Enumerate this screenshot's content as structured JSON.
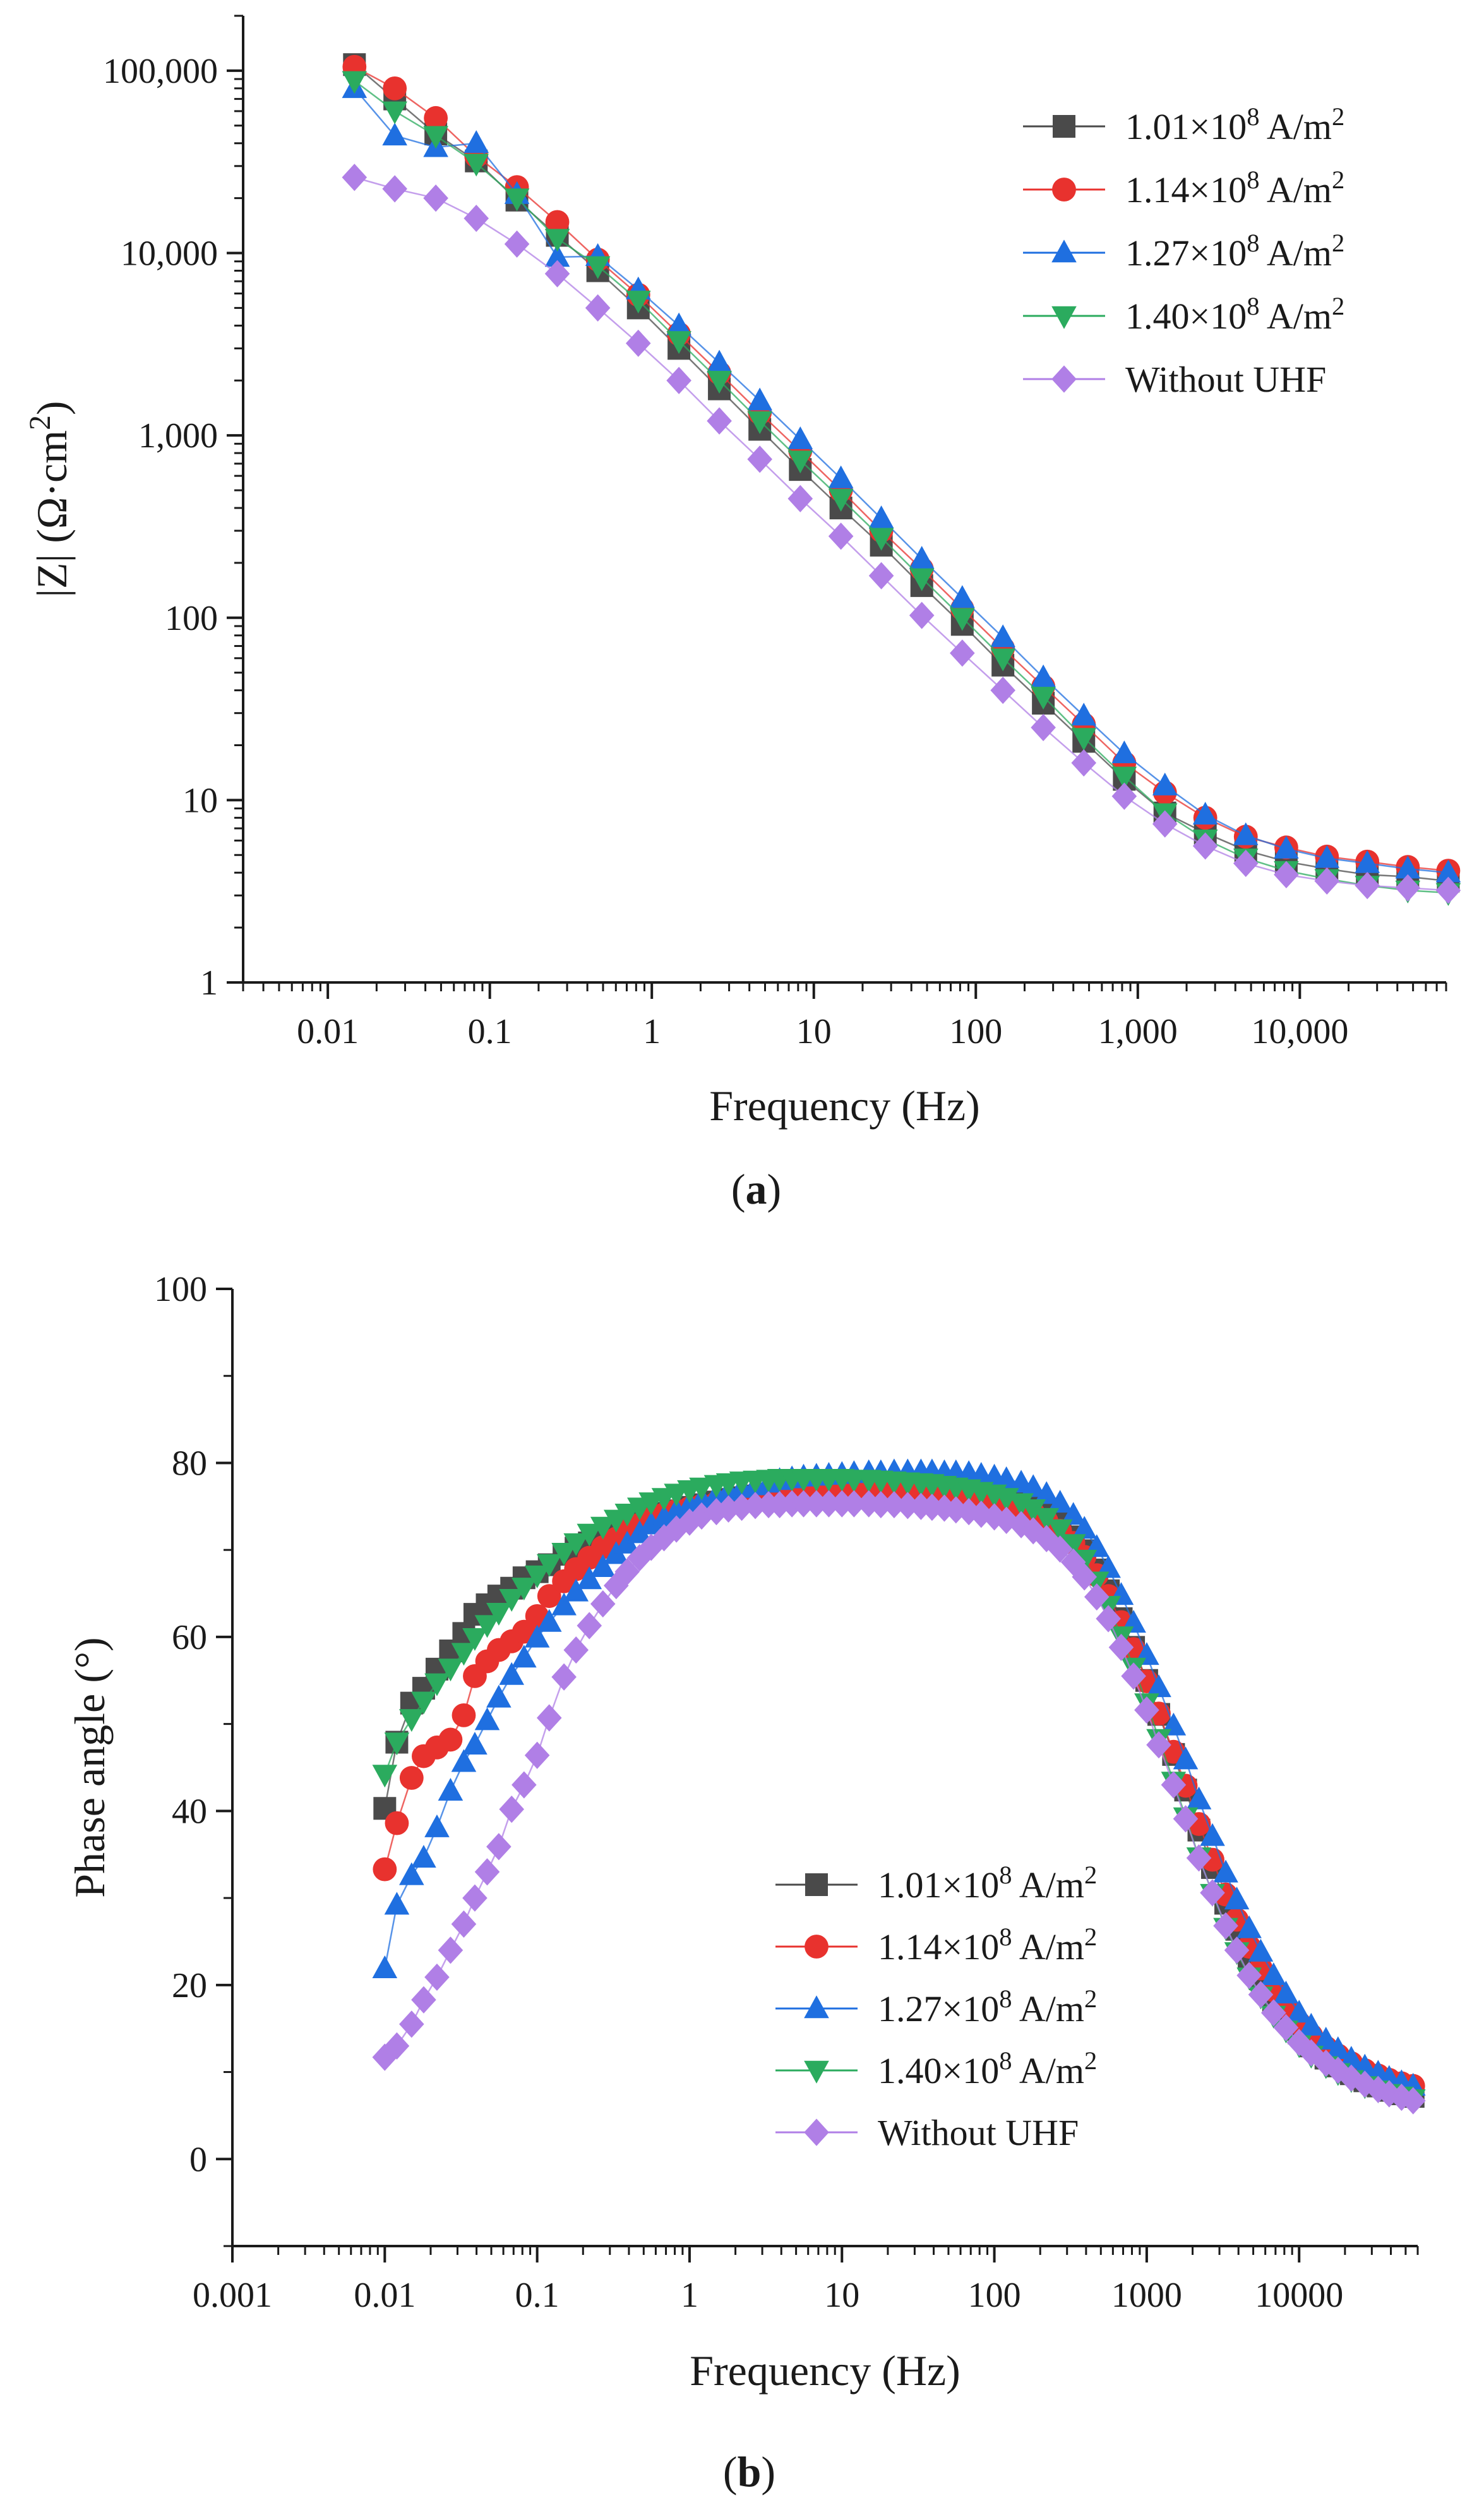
{
  "chart_data": [
    {
      "id": "a",
      "type": "line",
      "panel_label": "a",
      "xlabel": "Frequency (Hz)",
      "ylabel": "|Z| (Ω·cm²)",
      "ylabel_parts": {
        "pre": "|Z| (Ω·cm",
        "sup": "2",
        "post": ")"
      },
      "xscale": "log",
      "yscale": "log",
      "xlim": [
        0.003,
        80000
      ],
      "ylim": [
        1,
        200000
      ],
      "xticks": [
        {
          "value": 0.01,
          "label": "0.01"
        },
        {
          "value": 0.1,
          "label": "0.1"
        },
        {
          "value": 1,
          "label": "1"
        },
        {
          "value": 10,
          "label": "10"
        },
        {
          "value": 100,
          "label": "100"
        },
        {
          "value": 1000,
          "label": "1,000"
        },
        {
          "value": 10000,
          "label": "10,000"
        }
      ],
      "yticks": [
        {
          "value": 1,
          "label": "1"
        },
        {
          "value": 10,
          "label": "10"
        },
        {
          "value": 100,
          "label": "100"
        },
        {
          "value": 1000,
          "label": "1,000"
        },
        {
          "value": 10000,
          "label": "10,000"
        },
        {
          "value": 100000,
          "label": "100,000"
        }
      ],
      "legend_position": "top-right",
      "x": [
        0.0146,
        0.0259,
        0.0464,
        0.0825,
        0.147,
        0.261,
        0.464,
        0.825,
        1.47,
        2.61,
        4.64,
        8.25,
        14.7,
        26.1,
        46.4,
        82.5,
        147,
        261,
        464,
        825,
        1470,
        2610,
        4640,
        8250,
        14700,
        26100,
        46400,
        82500
      ],
      "series": [
        {
          "name": "1.01×10⁸ A/m²",
          "label_parts": {
            "pre": "1.01×10",
            "sup": "8",
            "post": " A/m",
            "sup2": "2"
          },
          "marker": "square",
          "color": "#4a4a4a",
          "values": [
            108000,
            70000,
            45000,
            32000,
            19500,
            12500,
            8000,
            5000,
            3000,
            1800,
            1080,
            650,
            400,
            250,
            150,
            92,
            55,
            34,
            21,
            13,
            8.5,
            6.6,
            5.3,
            4.6,
            4.2,
            3.9,
            3.8,
            3.6
          ]
        },
        {
          "name": "1.14×10⁸ A/m²",
          "label_parts": {
            "pre": "1.14×10",
            "sup": "8",
            "post": " A/m",
            "sup2": "2"
          },
          "marker": "circle",
          "color": "#e8322e",
          "values": [
            105000,
            80000,
            55000,
            34000,
            23000,
            14800,
            9200,
            5900,
            3600,
            2200,
            1330,
            820,
            500,
            300,
            185,
            112,
            68,
            42,
            26,
            16,
            11,
            8,
            6.3,
            5.5,
            4.9,
            4.6,
            4.3,
            4.1
          ]
        },
        {
          "name": "1.27×10⁸ A/m²",
          "label_parts": {
            "pre": "1.27×10",
            "sup": "8",
            "post": " A/m",
            "sup2": "2"
          },
          "marker": "triangle-up",
          "color": "#1f6fe0",
          "values": [
            80000,
            44000,
            38000,
            40000,
            21000,
            9500,
            9600,
            6300,
            4000,
            2500,
            1550,
            950,
            580,
            350,
            210,
            128,
            78,
            47,
            29,
            18,
            12,
            8.3,
            6.4,
            5.4,
            4.8,
            4.5,
            4.2,
            4.0
          ]
        },
        {
          "name": "1.40×10⁸ A/m²",
          "label_parts": {
            "pre": "1.40×10",
            "sup": "8",
            "post": " A/m",
            "sup2": "2"
          },
          "marker": "triangle-down",
          "color": "#2bab5e",
          "values": [
            88000,
            60000,
            44000,
            31000,
            20000,
            12000,
            8500,
            5500,
            3300,
            2000,
            1200,
            730,
            450,
            275,
            165,
            100,
            60,
            37,
            22,
            13.5,
            8.5,
            6.1,
            4.8,
            4.1,
            3.7,
            3.4,
            3.2,
            3.1
          ]
        },
        {
          "name": "Without UHF",
          "label_parts": {
            "pre": "Without UHF",
            "sup": "",
            "post": "",
            "sup2": ""
          },
          "marker": "diamond",
          "color": "#b07fe6",
          "values": [
            26000,
            22500,
            20000,
            15500,
            11200,
            7700,
            5000,
            3200,
            2000,
            1200,
            740,
            450,
            280,
            170,
            103,
            64,
            40,
            25,
            16,
            10.5,
            7.4,
            5.6,
            4.5,
            3.9,
            3.6,
            3.4,
            3.3,
            3.2
          ]
        }
      ]
    },
    {
      "id": "b",
      "type": "line",
      "panel_label": "b",
      "xlabel": "Frequency (Hz)",
      "ylabel": "Phase angle (°)",
      "xscale": "log",
      "yscale": "linear",
      "xlim": [
        0.001,
        60000
      ],
      "ylim": [
        -10,
        100
      ],
      "xticks": [
        {
          "value": 0.001,
          "label": "0.001"
        },
        {
          "value": 0.01,
          "label": "0.01"
        },
        {
          "value": 0.1,
          "label": "0.1"
        },
        {
          "value": 1,
          "label": "1"
        },
        {
          "value": 10,
          "label": "10"
        },
        {
          "value": 100,
          "label": "100"
        },
        {
          "value": 1000,
          "label": "1000"
        },
        {
          "value": 10000,
          "label": "10000"
        }
      ],
      "yticks": [
        {
          "value": 0,
          "label": "0"
        },
        {
          "value": 20,
          "label": "20"
        },
        {
          "value": 40,
          "label": "40"
        },
        {
          "value": 60,
          "label": "60"
        },
        {
          "value": 80,
          "label": "80"
        },
        {
          "value": 100,
          "label": "100"
        }
      ],
      "legend_position": "bottom-right",
      "x": [
        0.01,
        0.012,
        0.015,
        0.018,
        0.022,
        0.027,
        0.033,
        0.039,
        0.047,
        0.056,
        0.068,
        0.082,
        0.1,
        0.12,
        0.15,
        0.18,
        0.22,
        0.27,
        0.33,
        0.39,
        0.47,
        0.56,
        0.68,
        0.82,
        1,
        1.2,
        1.5,
        1.8,
        2.2,
        2.7,
        3.3,
        3.9,
        4.7,
        5.6,
        6.8,
        8.2,
        10,
        12,
        15,
        18,
        22,
        27,
        33,
        39,
        47,
        56,
        68,
        82,
        100,
        120,
        150,
        180,
        220,
        270,
        330,
        390,
        470,
        560,
        680,
        820,
        1000,
        1200,
        1500,
        1800,
        2200,
        2700,
        3300,
        3900,
        4700,
        5600,
        6800,
        8200,
        10000,
        12000,
        15000,
        18000,
        22000,
        27000,
        33000,
        39000,
        47000,
        56000
      ],
      "series": [
        {
          "name": "1.01×10⁸ A/m²",
          "label_parts": {
            "pre": "1.01×10",
            "sup": "8",
            "post": " A/m",
            "sup2": "2"
          },
          "marker": "square",
          "color": "#4a4a4a",
          "values": [
            40.3,
            47.9,
            52.4,
            54.1,
            56.3,
            58.4,
            60.4,
            62.6,
            63.7,
            64.7,
            65.6,
            66.8,
            67.5,
            68.3,
            69.5,
            70.2,
            70.8,
            71.5,
            72.2,
            72.8,
            73.3,
            73.8,
            74.2,
            74.5,
            74.9,
            75.2,
            75.5,
            75.8,
            76.0,
            76.2,
            76.4,
            76.6,
            76.7,
            76.8,
            76.9,
            77.0,
            77.0,
            77.1,
            77.1,
            77.1,
            77.1,
            77.1,
            77.0,
            77.0,
            76.9,
            76.8,
            76.7,
            76.5,
            76.3,
            76.0,
            75.6,
            75.0,
            74.1,
            73.0,
            71.5,
            69.9,
            67.7,
            65.3,
            62.1,
            58.8,
            55.0,
            51.1,
            46.5,
            42.4,
            37.8,
            33.5,
            29.4,
            26.4,
            23.2,
            20.7,
            18.2,
            16.3,
            14.5,
            13.0,
            11.6,
            10.7,
            9.8,
            9.0,
            8.4,
            7.9,
            7.5,
            7.2
          ]
        },
        {
          "name": "1.14×10⁸ A/m²",
          "label_parts": {
            "pre": "1.14×10",
            "sup": "8",
            "post": " A/m",
            "sup2": "2"
          },
          "marker": "circle",
          "color": "#e8322e",
          "values": [
            33.3,
            38.6,
            43.8,
            46.3,
            47.3,
            48.2,
            51.0,
            55.5,
            57.2,
            58.5,
            59.5,
            60.6,
            62.4,
            64.7,
            66.4,
            67.8,
            69.1,
            70.3,
            71.3,
            72.2,
            72.9,
            73.6,
            74.1,
            74.5,
            74.8,
            75.1,
            75.4,
            75.7,
            75.9,
            76.1,
            76.3,
            76.4,
            76.5,
            76.6,
            76.7,
            76.8,
            76.8,
            76.8,
            76.8,
            76.8,
            76.8,
            76.7,
            76.6,
            76.5,
            76.4,
            76.3,
            76.1,
            75.9,
            75.6,
            75.3,
            74.8,
            74.2,
            73.3,
            72.2,
            70.8,
            69.2,
            67.1,
            64.7,
            61.7,
            58.6,
            54.9,
            51.2,
            46.8,
            42.9,
            38.5,
            34.4,
            30.4,
            27.5,
            24.4,
            21.9,
            19.4,
            17.5,
            15.6,
            14.2,
            12.8,
            11.9,
            11.0,
            10.2,
            9.6,
            9.1,
            8.7,
            8.4
          ]
        },
        {
          "name": "1.27×10⁸ A/m²",
          "label_parts": {
            "pre": "1.27×10",
            "sup": "8",
            "post": " A/m",
            "sup2": "2"
          },
          "marker": "triangle-up",
          "color": "#1f6fe0",
          "values": [
            21.9,
            29.2,
            32.6,
            34.6,
            38.1,
            42.3,
            45.6,
            47.6,
            50.4,
            53.0,
            55.6,
            57.6,
            59.9,
            61.7,
            63.6,
            65.2,
            66.6,
            68.0,
            69.5,
            70.7,
            71.9,
            72.9,
            73.7,
            74.5,
            75.2,
            75.8,
            76.3,
            76.7,
            77.1,
            77.4,
            77.7,
            78.0,
            78.2,
            78.4,
            78.5,
            78.6,
            78.7,
            78.8,
            78.9,
            78.9,
            79.0,
            79.0,
            79.0,
            79.0,
            78.9,
            78.9,
            78.8,
            78.6,
            78.4,
            78.1,
            77.7,
            77.2,
            76.4,
            75.4,
            74.0,
            72.4,
            70.3,
            67.9,
            64.8,
            61.6,
            57.9,
            54.2,
            49.8,
            45.9,
            41.3,
            37.1,
            32.9,
            29.8,
            26.5,
            23.8,
            21.1,
            19.0,
            16.8,
            15.3,
            13.7,
            12.6,
            11.5,
            10.6,
            9.9,
            9.3,
            8.8,
            8.4
          ]
        },
        {
          "name": "1.40×10⁸ A/m²",
          "label_parts": {
            "pre": "1.40×10",
            "sup": "8",
            "post": " A/m",
            "sup2": "2"
          },
          "marker": "triangle-down",
          "color": "#2bab5e",
          "values": [
            44.2,
            47.9,
            50.6,
            52.6,
            54.7,
            56.4,
            58.2,
            59.9,
            61.4,
            62.8,
            64.4,
            65.7,
            67.1,
            68.4,
            69.7,
            70.8,
            71.9,
            72.7,
            73.5,
            74.2,
            74.9,
            75.5,
            76.0,
            76.5,
            76.9,
            77.2,
            77.5,
            77.7,
            77.9,
            78.0,
            78.1,
            78.2,
            78.2,
            78.2,
            78.2,
            78.2,
            78.2,
            78.1,
            78.1,
            78.0,
            77.9,
            77.8,
            77.7,
            77.6,
            77.4,
            77.2,
            77.0,
            76.7,
            76.4,
            76.0,
            75.4,
            74.7,
            73.7,
            72.4,
            70.7,
            68.9,
            66.4,
            63.6,
            60.1,
            56.5,
            52.4,
            48.3,
            43.4,
            39.3,
            34.7,
            30.5,
            26.6,
            23.8,
            20.9,
            18.7,
            16.5,
            14.8,
            13.1,
            11.9,
            10.7,
            9.9,
            9.1,
            8.4,
            7.9,
            7.5,
            7.2,
            6.9
          ]
        },
        {
          "name": "Without UHF",
          "label_parts": {
            "pre": "Without UHF",
            "sup": "",
            "post": "",
            "sup2": ""
          },
          "marker": "diamond",
          "color": "#b07fe6",
          "values": [
            11.7,
            13.0,
            15.5,
            18.3,
            20.9,
            24.0,
            27.0,
            30.0,
            33.0,
            35.9,
            40.2,
            43.0,
            46.4,
            50.7,
            55.4,
            58.5,
            61.3,
            63.8,
            65.9,
            67.5,
            69.1,
            70.3,
            71.4,
            72.4,
            73.2,
            73.9,
            74.4,
            74.7,
            74.9,
            75.1,
            75.2,
            75.2,
            75.3,
            75.3,
            75.3,
            75.3,
            75.3,
            75.3,
            75.3,
            75.2,
            75.2,
            75.1,
            75.0,
            74.9,
            74.8,
            74.6,
            74.4,
            74.1,
            73.8,
            73.4,
            72.9,
            72.2,
            71.3,
            70.1,
            68.6,
            66.9,
            64.6,
            62.1,
            58.8,
            55.5,
            51.6,
            47.6,
            43.0,
            39.1,
            34.6,
            30.6,
            26.8,
            24.0,
            21.1,
            18.9,
            16.8,
            15.1,
            13.4,
            12.2,
            11.0,
            10.2,
            9.3,
            8.6,
            8.0,
            7.5,
            7.1,
            6.7
          ]
        }
      ]
    }
  ]
}
